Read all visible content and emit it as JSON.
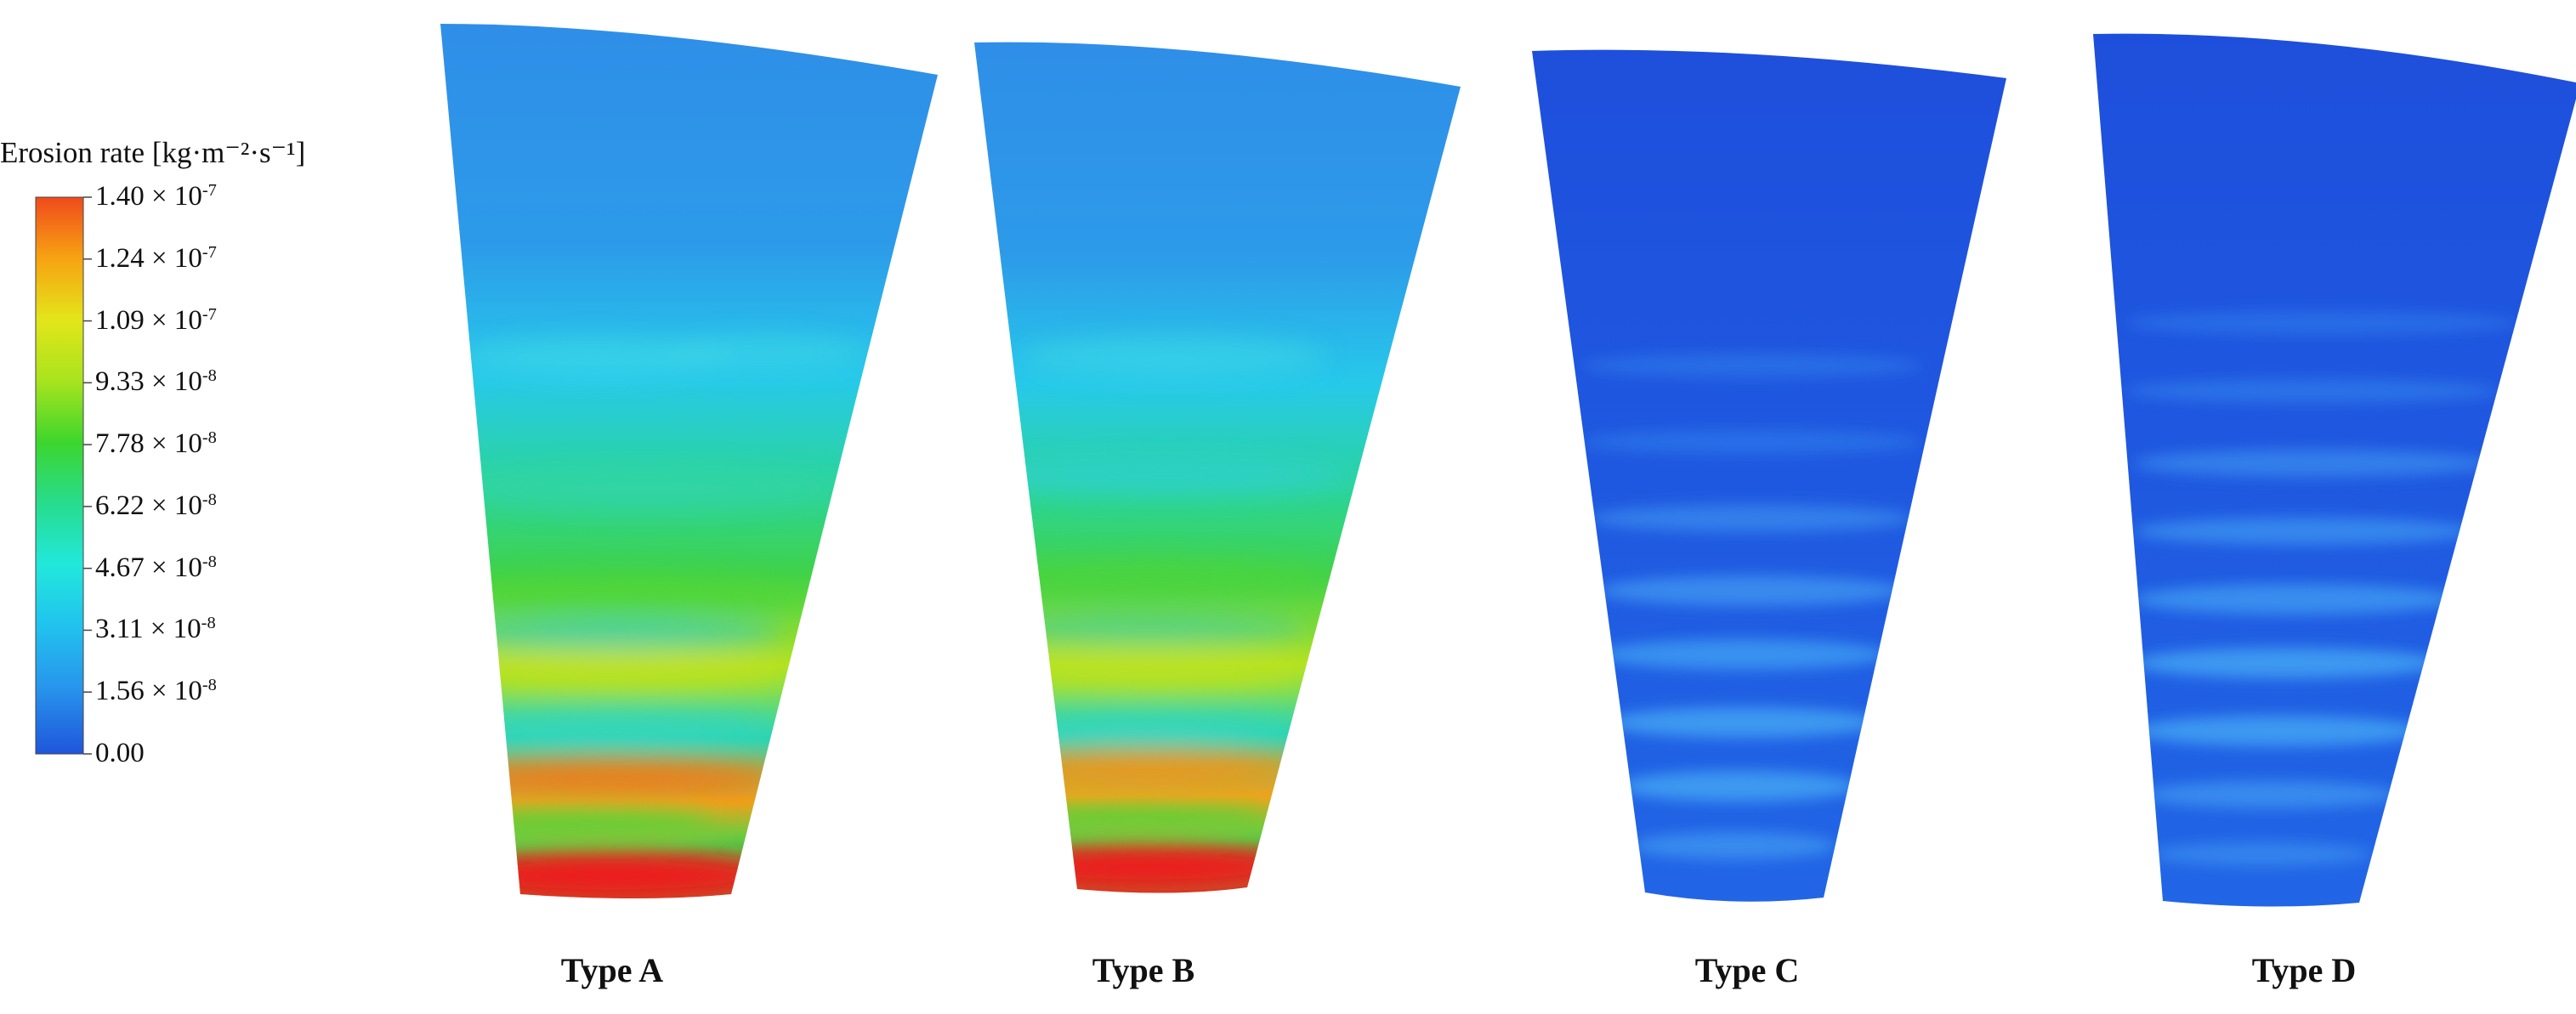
{
  "legend": {
    "title": "Erosion rate [kg·m⁻²·s⁻¹]",
    "labels": [
      {
        "mant": "1.40 × 10",
        "exp": "-7"
      },
      {
        "mant": "1.24 × 10",
        "exp": "-7"
      },
      {
        "mant": "1.09 × 10",
        "exp": "-7"
      },
      {
        "mant": "9.33 × 10",
        "exp": "-8"
      },
      {
        "mant": "7.78 × 10",
        "exp": "-8"
      },
      {
        "mant": "6.22 × 10",
        "exp": "-8"
      },
      {
        "mant": "4.67 × 10",
        "exp": "-8"
      },
      {
        "mant": "3.11 × 10",
        "exp": "-8"
      },
      {
        "mant": "1.56 × 10",
        "exp": "-8"
      },
      {
        "mant": "0.00",
        "exp": ""
      }
    ],
    "colors": [
      "#f04a1c",
      "#f7a312",
      "#e3e51a",
      "#a8e41e",
      "#3dd62d",
      "#27dc8d",
      "#22e8dc",
      "#21c2ee",
      "#2895ec",
      "#1f55dc"
    ]
  },
  "panels": [
    {
      "label": "Type A",
      "severity": "high"
    },
    {
      "label": "Type B",
      "severity": "high"
    },
    {
      "label": "Type C",
      "severity": "low"
    },
    {
      "label": "Type D",
      "severity": "low"
    }
  ]
}
